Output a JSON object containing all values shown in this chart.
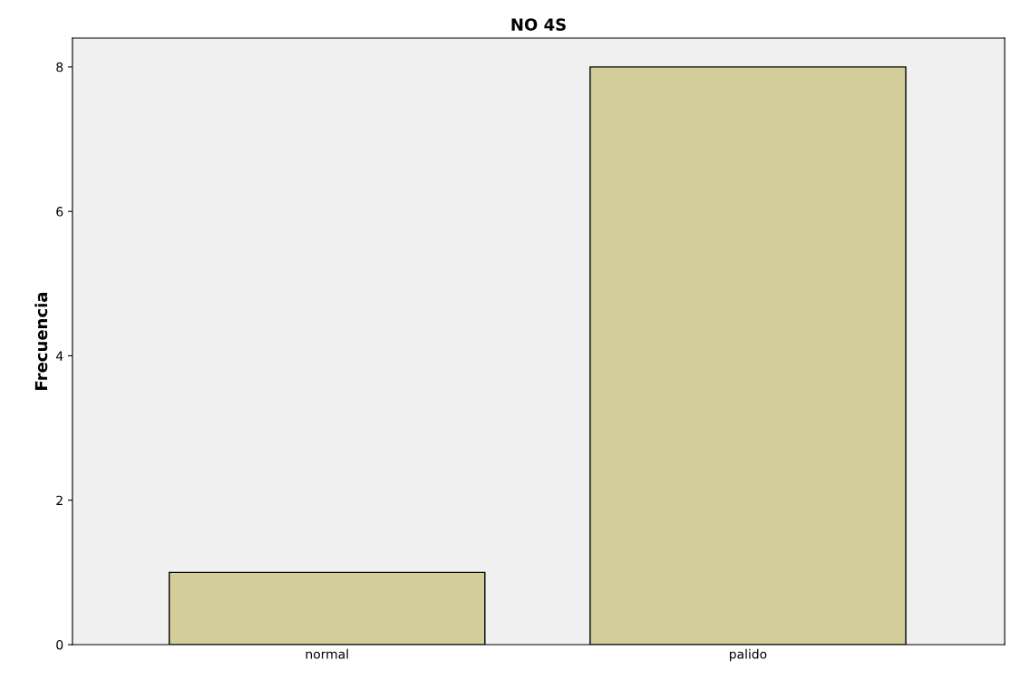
{
  "chart_data": {
    "type": "bar",
    "title": "NO 4S",
    "ylabel": "Frecuencia",
    "categories": [
      "normal",
      "palido"
    ],
    "values": [
      1,
      8
    ],
    "color": "#d3ce99",
    "ylim": [
      0,
      8.4
    ],
    "yticks": [
      0,
      2,
      4,
      6,
      8
    ],
    "grid": false,
    "legend": false
  }
}
